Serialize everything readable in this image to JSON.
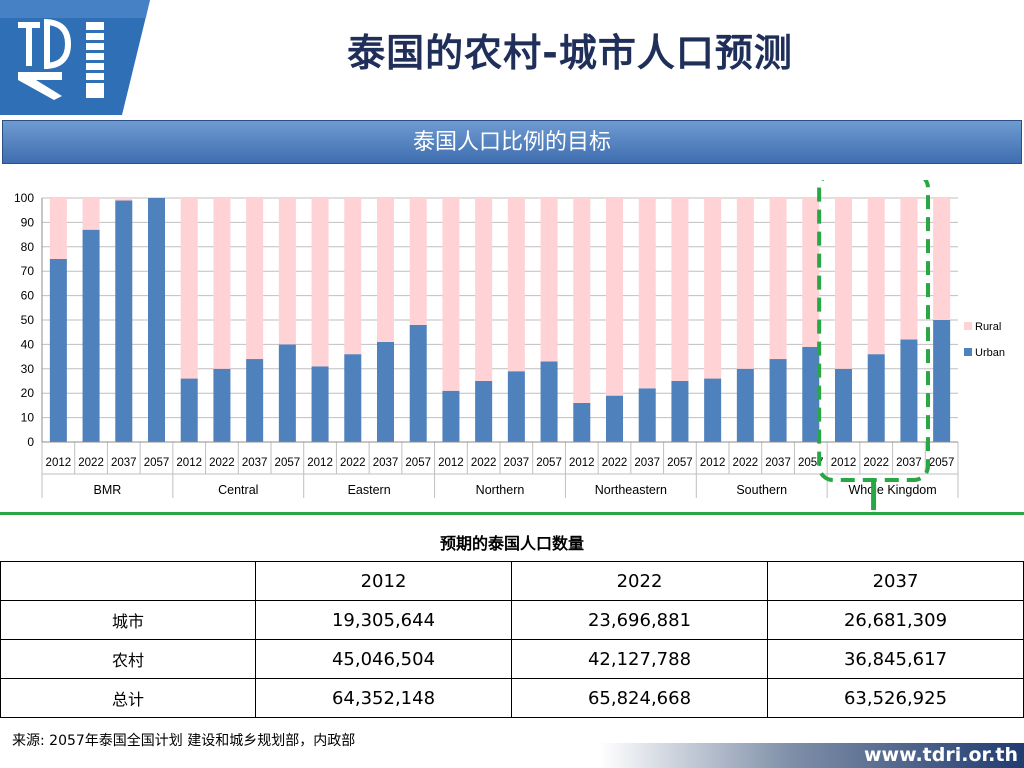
{
  "slide": {
    "title": "泰国的农村-城市人口预测",
    "banner": "泰国人口比例的目标",
    "table_title": "预期的泰国人口数量",
    "source": "来源: 2057年泰国全国计划 建设和城乡规划部，内政部",
    "footer_url": "www.tdri.or.th"
  },
  "colors": {
    "urban": "#4f81bd",
    "rural": "#ffd2d6",
    "highlight": "#29a745",
    "banner": "#4f7fbf"
  },
  "icons": [
    "tdri-logo",
    "down-arrow-icon"
  ],
  "chart_data": {
    "type": "bar",
    "stacked": true,
    "regions": [
      "BMR",
      "Central",
      "Eastern",
      "Northern",
      "Northeastern",
      "Southern",
      "Whole Kingdom"
    ],
    "years": [
      "2012",
      "2022",
      "2037",
      "2057"
    ],
    "ylim": [
      0,
      100
    ],
    "yticks": [
      0,
      10,
      20,
      30,
      40,
      50,
      60,
      70,
      80,
      90,
      100
    ],
    "grid": true,
    "legend": "right",
    "highlighted_region": "Whole Kingdom",
    "series": [
      {
        "name": "Rural",
        "values": [
          25,
          13,
          1,
          0,
          74,
          70,
          66,
          60,
          69,
          64,
          59,
          52,
          79,
          75,
          71,
          67,
          84,
          81,
          78,
          75,
          74,
          70,
          66,
          61,
          70,
          64,
          58,
          50
        ]
      },
      {
        "name": "Urban",
        "values": [
          75,
          87,
          99,
          100,
          26,
          30,
          34,
          40,
          31,
          36,
          41,
          48,
          21,
          25,
          29,
          33,
          16,
          19,
          22,
          25,
          26,
          30,
          34,
          39,
          30,
          36,
          42,
          50
        ]
      }
    ]
  },
  "table": {
    "columns": [
      "",
      "2012",
      "2022",
      "2037"
    ],
    "rows": [
      {
        "label": "城市",
        "values": [
          "19,305,644",
          "23,696,881",
          "26,681,309"
        ]
      },
      {
        "label": "农村",
        "values": [
          "45,046,504",
          "42,127,788",
          "36,845,617"
        ]
      },
      {
        "label": "总计",
        "values": [
          "64,352,148",
          "65,824,668",
          "63,526,925"
        ]
      }
    ]
  }
}
